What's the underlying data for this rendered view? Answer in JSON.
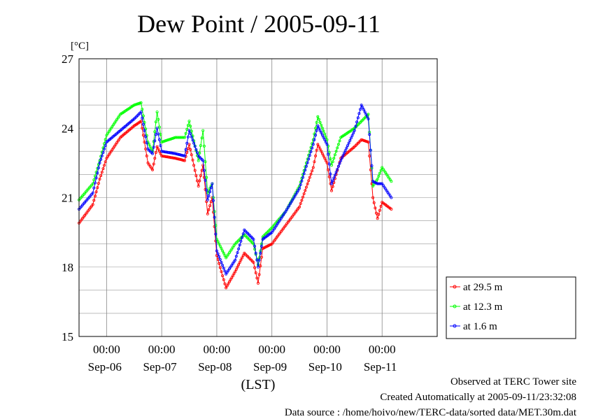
{
  "chart_data": {
    "type": "line",
    "title": "Dew Point / 2005-09-11",
    "ylabel": "[°C]",
    "xlabel": "(LST)",
    "ylim": [
      15,
      27
    ],
    "yticks": [
      15,
      18,
      21,
      24,
      27
    ],
    "x_start": "2005-09-05 12:00",
    "x_end": "2005-09-11 24:00",
    "time_tick_label": "00:00",
    "day_labels": [
      "Sep-06",
      "Sep-07",
      "Sep-08",
      "Sep-09",
      "Sep-10",
      "Sep-11"
    ],
    "grid": true,
    "legend_position": "right",
    "series": [
      {
        "name": "at 29.5 m",
        "color": "#ff0000",
        "points": [
          [
            "2005-09-05 12:00",
            19.9
          ],
          [
            "2005-09-05 18:00",
            20.7
          ],
          [
            "2005-09-05 21:00",
            21.8
          ],
          [
            "2005-09-06 00:00",
            22.7
          ],
          [
            "2005-09-06 06:00",
            23.6
          ],
          [
            "2005-09-06 12:00",
            24.1
          ],
          [
            "2005-09-06 15:00",
            24.3
          ],
          [
            "2005-09-06 18:00",
            22.5
          ],
          [
            "2005-09-06 20:00",
            22.2
          ],
          [
            "2005-09-06 22:00",
            23.2
          ],
          [
            "2005-09-07 00:00",
            22.8
          ],
          [
            "2005-09-07 06:00",
            22.7
          ],
          [
            "2005-09-07 10:00",
            22.6
          ],
          [
            "2005-09-07 12:00",
            23.3
          ],
          [
            "2005-09-07 16:00",
            21.5
          ],
          [
            "2005-09-07 18:00",
            22.4
          ],
          [
            "2005-09-07 20:00",
            20.3
          ],
          [
            "2005-09-07 22:00",
            21.0
          ],
          [
            "2005-09-08 00:00",
            18.5
          ],
          [
            "2005-09-08 04:00",
            17.1
          ],
          [
            "2005-09-08 08:00",
            17.8
          ],
          [
            "2005-09-08 12:00",
            18.6
          ],
          [
            "2005-09-08 16:00",
            18.2
          ],
          [
            "2005-09-08 18:00",
            17.3
          ],
          [
            "2005-09-08 20:00",
            18.8
          ],
          [
            "2005-09-09 00:00",
            19.0
          ],
          [
            "2005-09-09 06:00",
            19.8
          ],
          [
            "2005-09-09 12:00",
            20.6
          ],
          [
            "2005-09-09 18:00",
            22.3
          ],
          [
            "2005-09-09 20:00",
            23.3
          ],
          [
            "2005-09-10 00:00",
            22.5
          ],
          [
            "2005-09-10 02:00",
            21.3
          ],
          [
            "2005-09-10 06:00",
            22.7
          ],
          [
            "2005-09-10 12:00",
            23.2
          ],
          [
            "2005-09-10 15:00",
            23.5
          ],
          [
            "2005-09-10 18:00",
            23.4
          ],
          [
            "2005-09-10 20:00",
            21.0
          ],
          [
            "2005-09-10 22:00",
            20.1
          ],
          [
            "2005-09-11 00:00",
            20.8
          ],
          [
            "2005-09-11 04:00",
            20.5
          ]
        ]
      },
      {
        "name": "at 12.3 m",
        "color": "#00ff00",
        "points": [
          [
            "2005-09-05 12:00",
            20.9
          ],
          [
            "2005-09-05 18:00",
            21.6
          ],
          [
            "2005-09-05 21:00",
            22.6
          ],
          [
            "2005-09-06 00:00",
            23.7
          ],
          [
            "2005-09-06 06:00",
            24.6
          ],
          [
            "2005-09-06 12:00",
            25.0
          ],
          [
            "2005-09-06 15:00",
            25.1
          ],
          [
            "2005-09-06 18:00",
            23.4
          ],
          [
            "2005-09-06 20:00",
            23.0
          ],
          [
            "2005-09-06 22:00",
            24.7
          ],
          [
            "2005-09-07 00:00",
            23.4
          ],
          [
            "2005-09-07 06:00",
            23.6
          ],
          [
            "2005-09-07 10:00",
            23.6
          ],
          [
            "2005-09-07 12:00",
            24.3
          ],
          [
            "2005-09-07 16:00",
            22.6
          ],
          [
            "2005-09-07 18:00",
            23.9
          ],
          [
            "2005-09-07 20:00",
            21.2
          ],
          [
            "2005-09-07 22:00",
            21.6
          ],
          [
            "2005-09-08 00:00",
            19.2
          ],
          [
            "2005-09-08 04:00",
            18.4
          ],
          [
            "2005-09-08 08:00",
            19.0
          ],
          [
            "2005-09-08 12:00",
            19.4
          ],
          [
            "2005-09-08 16:00",
            19.0
          ],
          [
            "2005-09-08 18:00",
            18.1
          ],
          [
            "2005-09-08 20:00",
            19.3
          ],
          [
            "2005-09-09 00:00",
            19.7
          ],
          [
            "2005-09-09 06:00",
            20.4
          ],
          [
            "2005-09-09 12:00",
            21.5
          ],
          [
            "2005-09-09 18:00",
            23.5
          ],
          [
            "2005-09-09 20:00",
            24.5
          ],
          [
            "2005-09-10 00:00",
            23.5
          ],
          [
            "2005-09-10 02:00",
            22.4
          ],
          [
            "2005-09-10 06:00",
            23.6
          ],
          [
            "2005-09-10 12:00",
            24.0
          ],
          [
            "2005-09-10 15:00",
            24.3
          ],
          [
            "2005-09-10 18:00",
            24.6
          ],
          [
            "2005-09-10 20:00",
            21.5
          ],
          [
            "2005-09-10 22:00",
            21.8
          ],
          [
            "2005-09-11 00:00",
            22.3
          ],
          [
            "2005-09-11 04:00",
            21.7
          ]
        ]
      },
      {
        "name": "at 1.6 m",
        "color": "#0000ff",
        "points": [
          [
            "2005-09-05 12:00",
            20.5
          ],
          [
            "2005-09-05 18:00",
            21.2
          ],
          [
            "2005-09-05 21:00",
            22.5
          ],
          [
            "2005-09-06 00:00",
            23.4
          ],
          [
            "2005-09-06 06:00",
            23.9
          ],
          [
            "2005-09-06 12:00",
            24.4
          ],
          [
            "2005-09-06 15:00",
            24.7
          ],
          [
            "2005-09-06 18:00",
            23.1
          ],
          [
            "2005-09-06 20:00",
            22.9
          ],
          [
            "2005-09-06 22:00",
            24.0
          ],
          [
            "2005-09-07 00:00",
            23.0
          ],
          [
            "2005-09-07 06:00",
            22.9
          ],
          [
            "2005-09-07 10:00",
            22.8
          ],
          [
            "2005-09-07 12:00",
            23.9
          ],
          [
            "2005-09-07 16:00",
            22.8
          ],
          [
            "2005-09-07 18:00",
            22.6
          ],
          [
            "2005-09-07 20:00",
            20.9
          ],
          [
            "2005-09-07 22:00",
            21.6
          ],
          [
            "2005-09-08 00:00",
            18.7
          ],
          [
            "2005-09-08 04:00",
            17.7
          ],
          [
            "2005-09-08 08:00",
            18.3
          ],
          [
            "2005-09-08 12:00",
            19.6
          ],
          [
            "2005-09-08 16:00",
            19.2
          ],
          [
            "2005-09-08 18:00",
            18.0
          ],
          [
            "2005-09-08 20:00",
            19.2
          ],
          [
            "2005-09-09 00:00",
            19.5
          ],
          [
            "2005-09-09 06:00",
            20.4
          ],
          [
            "2005-09-09 12:00",
            21.4
          ],
          [
            "2005-09-09 18:00",
            23.3
          ],
          [
            "2005-09-09 20:00",
            24.1
          ],
          [
            "2005-09-10 00:00",
            23.3
          ],
          [
            "2005-09-10 02:00",
            21.6
          ],
          [
            "2005-09-10 06:00",
            22.6
          ],
          [
            "2005-09-10 12:00",
            23.9
          ],
          [
            "2005-09-10 15:00",
            25.0
          ],
          [
            "2005-09-10 18:00",
            24.4
          ],
          [
            "2005-09-10 20:00",
            21.7
          ],
          [
            "2005-09-10 22:00",
            21.6
          ],
          [
            "2005-09-11 00:00",
            21.6
          ],
          [
            "2005-09-11 04:00",
            21.0
          ]
        ]
      }
    ]
  },
  "footer": {
    "observed": "Observed at TERC Tower site",
    "created": "Created Automatically at 2005-09-11/23:32:08",
    "source": "Data source : /home/hoivo/new/TERC-data/sorted  data/MET.30m.dat"
  }
}
